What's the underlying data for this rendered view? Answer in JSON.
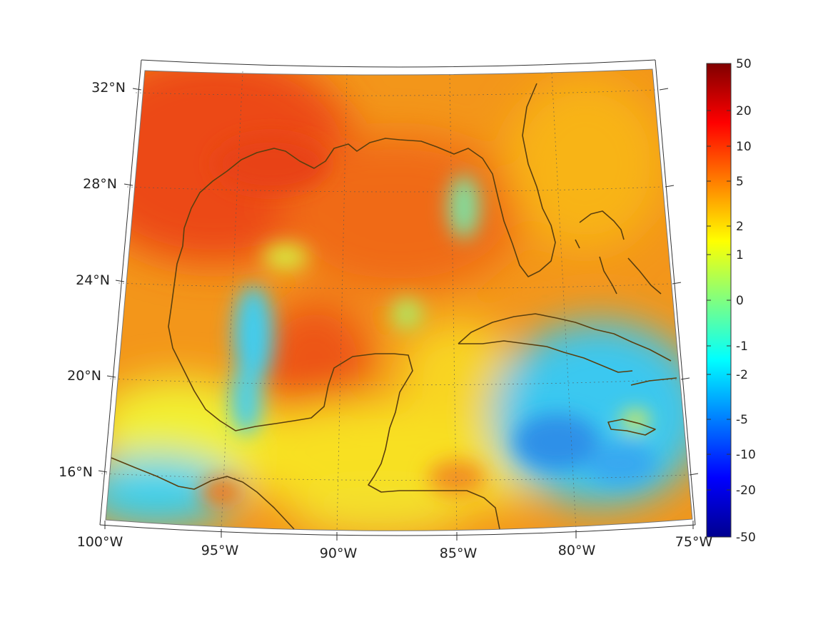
{
  "map": {
    "type": "heatmap",
    "projection": "lambert-conic",
    "region": "Gulf of Mexico and Caribbean",
    "lon_range": [
      -100,
      -75
    ],
    "lat_range": [
      14,
      33
    ],
    "grid": true,
    "coastline_color": "#5a3f0f",
    "lat_ticks": [
      {
        "value": 32,
        "label": "32°N"
      },
      {
        "value": 28,
        "label": "28°N"
      },
      {
        "value": 24,
        "label": "24°N"
      },
      {
        "value": 20,
        "label": "20°N"
      },
      {
        "value": 16,
        "label": "16°N"
      }
    ],
    "lon_ticks": [
      {
        "value": -100,
        "label": "100°W"
      },
      {
        "value": -95,
        "label": "95°W"
      },
      {
        "value": -90,
        "label": "90°W"
      },
      {
        "value": -85,
        "label": "85°W"
      },
      {
        "value": -80,
        "label": "80°W"
      },
      {
        "value": -75,
        "label": "75°W"
      }
    ]
  },
  "colorbar": {
    "ticks": [
      "50",
      "20",
      "10",
      "5",
      "2",
      "1",
      "0",
      "-1",
      "-2",
      "-5",
      "-10",
      "-20",
      "-50"
    ],
    "colormap": "jet",
    "range": [
      -50,
      50
    ]
  }
}
